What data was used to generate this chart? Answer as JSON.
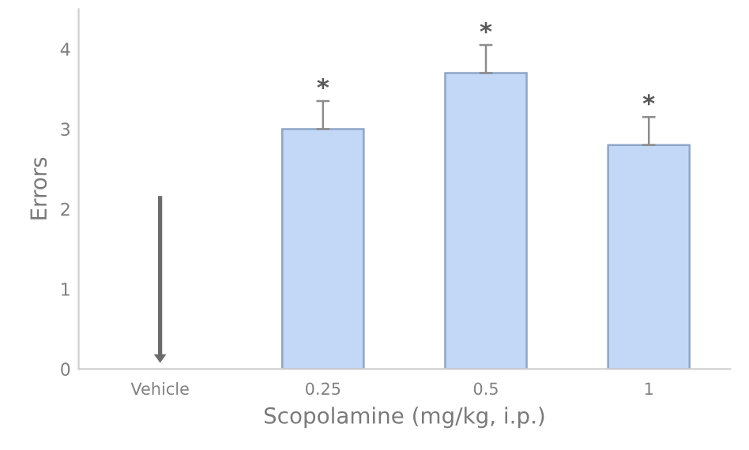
{
  "chart_data": {
    "type": "bar",
    "xlabel": "Scopolamine (mg/kg, i.p.)",
    "ylabel": "Errors",
    "categories": [
      "Vehicle",
      "0.25",
      "0.5",
      "1"
    ],
    "values": [
      0,
      3.0,
      3.7,
      2.8
    ],
    "errors": [
      null,
      [
        3.0,
        3.35
      ],
      [
        3.7,
        4.05
      ],
      [
        2.8,
        3.15
      ]
    ],
    "color": "#c3d7f6",
    "ylim": [
      0,
      4.5
    ],
    "yticks": [
      0,
      1,
      2,
      3,
      4
    ],
    "annotations": [
      {
        "text": "*",
        "x": "0.25",
        "y": 3.35
      },
      {
        "text": "*",
        "x": "0.5",
        "y": 4.05
      },
      {
        "text": "*",
        "x": "1",
        "y": 3.15
      }
    ],
    "grid": false,
    "legend": false
  }
}
